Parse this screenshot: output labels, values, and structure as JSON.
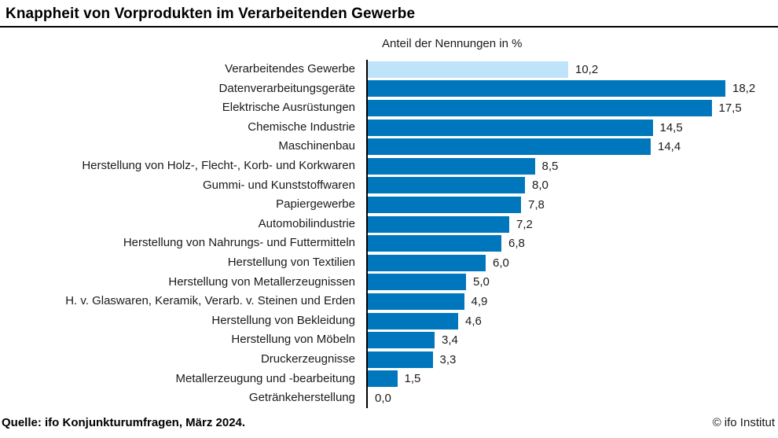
{
  "title": "Knappheit von Vorprodukten im Verarbeitenden Gewerbe",
  "chart_data": {
    "type": "bar",
    "orientation": "horizontal",
    "subtitle": "Anteil der Nennungen in %",
    "categories": [
      "Verarbeitendes Gewerbe",
      "Datenverarbeitungsgeräte",
      "Elektrische Ausrüstungen",
      "Chemische Industrie",
      "Maschinenbau",
      "Herstellung von Holz-, Flecht-, Korb- und Korkwaren",
      "Gummi- und Kunststoffwaren",
      "Papiergewerbe",
      "Automobilindustrie",
      "Herstellung von Nahrungs- und Futtermitteln",
      "Herstellung von Textilien",
      "Herstellung von Metallerzeugnissen",
      "H. v. Glaswaren, Keramik, Verarb. v. Steinen und Erden",
      "Herstellung von Bekleidung",
      "Herstellung von Möbeln",
      "Druckerzeugnisse",
      "Metallerzeugung und -bearbeitung",
      "Getränkeherstellung"
    ],
    "values": [
      10.2,
      18.2,
      17.5,
      14.5,
      14.4,
      8.5,
      8.0,
      7.8,
      7.2,
      6.8,
      6.0,
      5.0,
      4.9,
      4.6,
      3.4,
      3.3,
      1.5,
      0.0
    ],
    "value_labels": [
      "10,2",
      "18,2",
      "17,5",
      "14,5",
      "14,4",
      "8,5",
      "8,0",
      "7,8",
      "7,2",
      "6,8",
      "6,0",
      "5,0",
      "4,9",
      "4,6",
      "3,4",
      "3,3",
      "1,5",
      "0,0"
    ],
    "highlight_index": 0,
    "bar_color": "#0077BC",
    "highlight_color": "#BFE4FA",
    "xlim": [
      0,
      18.4
    ],
    "grid": false,
    "legend": false
  },
  "footer": {
    "source": "Quelle: ifo Konjunkturumfragen, März 2024.",
    "copyright": "© ifo Institut"
  }
}
